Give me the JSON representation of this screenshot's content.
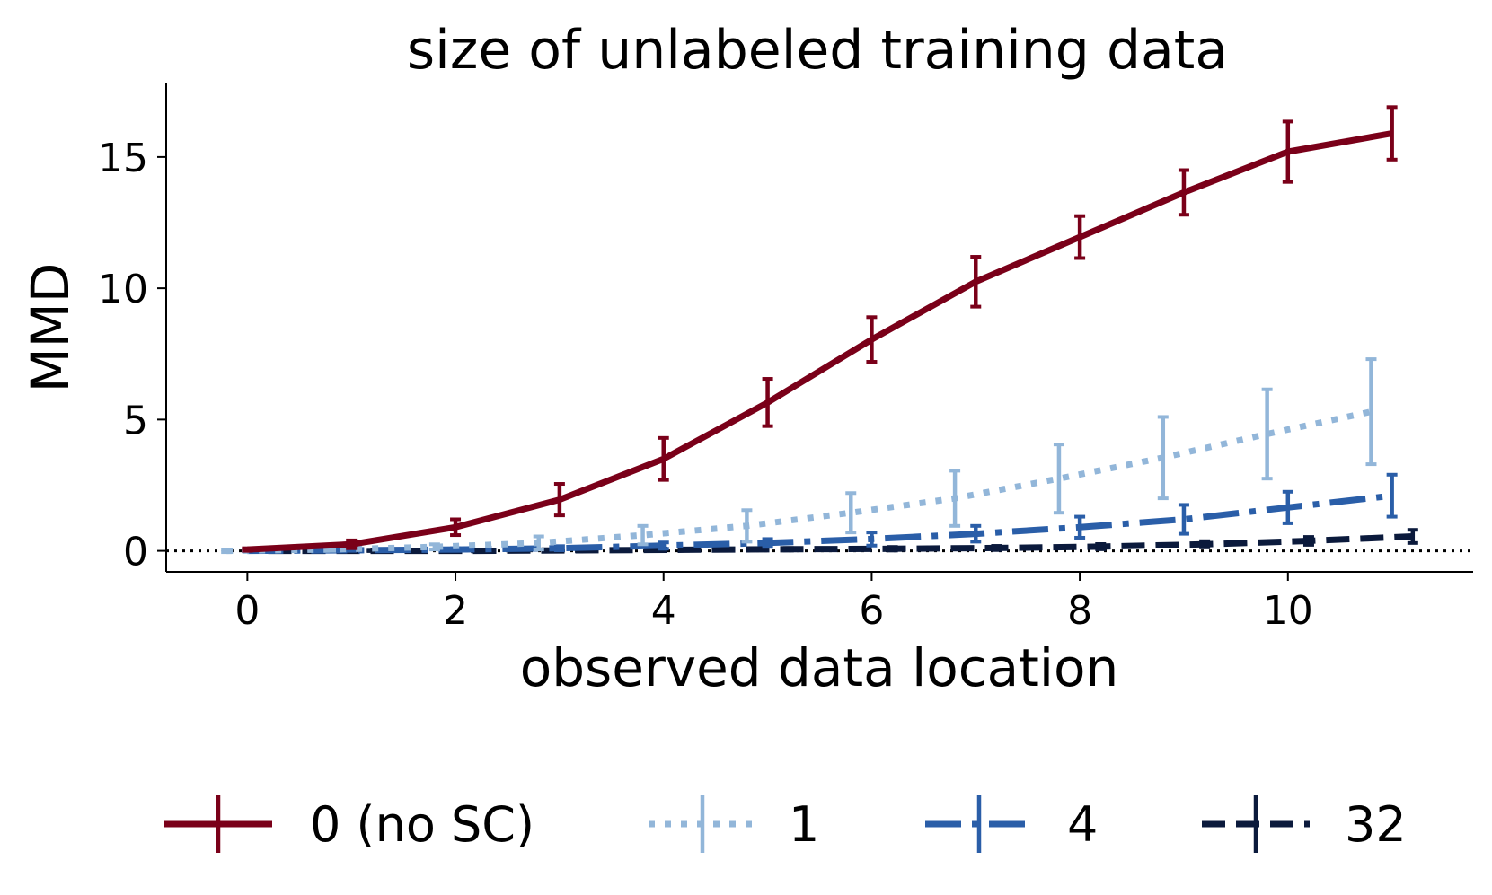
{
  "chart_data": {
    "type": "line",
    "title": "size of unlabeled training data",
    "xlabel": "observed data location",
    "ylabel": "MMD",
    "xlim": [
      -0.78,
      11.78
    ],
    "ylim": [
      -0.8,
      17.8
    ],
    "xticks": [
      0,
      2,
      4,
      6,
      8,
      10
    ],
    "yticks": [
      0,
      5,
      10,
      15
    ],
    "reference_line": {
      "y": 0,
      "style": "dotted",
      "color": "#000000"
    },
    "legend_position": "bottom-center",
    "series": [
      {
        "name": "0 (no SC)",
        "color": "#7a0019",
        "style": "solid",
        "x": [
          0,
          1,
          2,
          3,
          4,
          5,
          6,
          7,
          8,
          9,
          10,
          11
        ],
        "y": [
          0.05,
          0.25,
          0.9,
          1.95,
          3.5,
          5.65,
          8.05,
          10.25,
          11.95,
          13.65,
          15.2,
          15.9
        ],
        "err": [
          0.05,
          0.15,
          0.3,
          0.6,
          0.8,
          0.9,
          0.85,
          0.95,
          0.8,
          0.85,
          1.15,
          1.0
        ]
      },
      {
        "name": "1",
        "color": "#92b6d9",
        "style": "dotted",
        "x": [
          -0.2,
          0.8,
          1.8,
          2.8,
          3.8,
          4.8,
          5.8,
          6.8,
          7.8,
          8.8,
          9.8,
          10.8
        ],
        "y": [
          0.0,
          0.05,
          0.15,
          0.3,
          0.6,
          0.95,
          1.45,
          2.0,
          2.75,
          3.55,
          4.45,
          5.3
        ],
        "err": [
          0.05,
          0.05,
          0.1,
          0.25,
          0.35,
          0.6,
          0.75,
          1.05,
          1.3,
          1.55,
          1.7,
          2.0
        ]
      },
      {
        "name": "4",
        "color": "#2a5ea8",
        "style": "dashdot",
        "x": [
          0,
          1,
          2,
          3,
          4,
          5,
          6,
          7,
          8,
          9,
          10,
          11
        ],
        "y": [
          0.0,
          0.02,
          0.05,
          0.1,
          0.2,
          0.3,
          0.45,
          0.65,
          0.9,
          1.2,
          1.65,
          2.1
        ],
        "err": [
          0.02,
          0.02,
          0.05,
          0.08,
          0.12,
          0.15,
          0.25,
          0.3,
          0.4,
          0.55,
          0.6,
          0.8
        ]
      },
      {
        "name": "32",
        "color": "#0b1a3c",
        "style": "dashed",
        "x": [
          0.2,
          1.2,
          2.2,
          3.2,
          4.2,
          5.2,
          6.2,
          7.2,
          8.2,
          9.2,
          10.2,
          11.2
        ],
        "y": [
          0.0,
          0.0,
          0.0,
          0.02,
          0.04,
          0.06,
          0.08,
          0.11,
          0.16,
          0.25,
          0.38,
          0.55
        ],
        "err": [
          0.01,
          0.01,
          0.02,
          0.03,
          0.04,
          0.05,
          0.07,
          0.08,
          0.1,
          0.12,
          0.15,
          0.25
        ]
      }
    ]
  }
}
